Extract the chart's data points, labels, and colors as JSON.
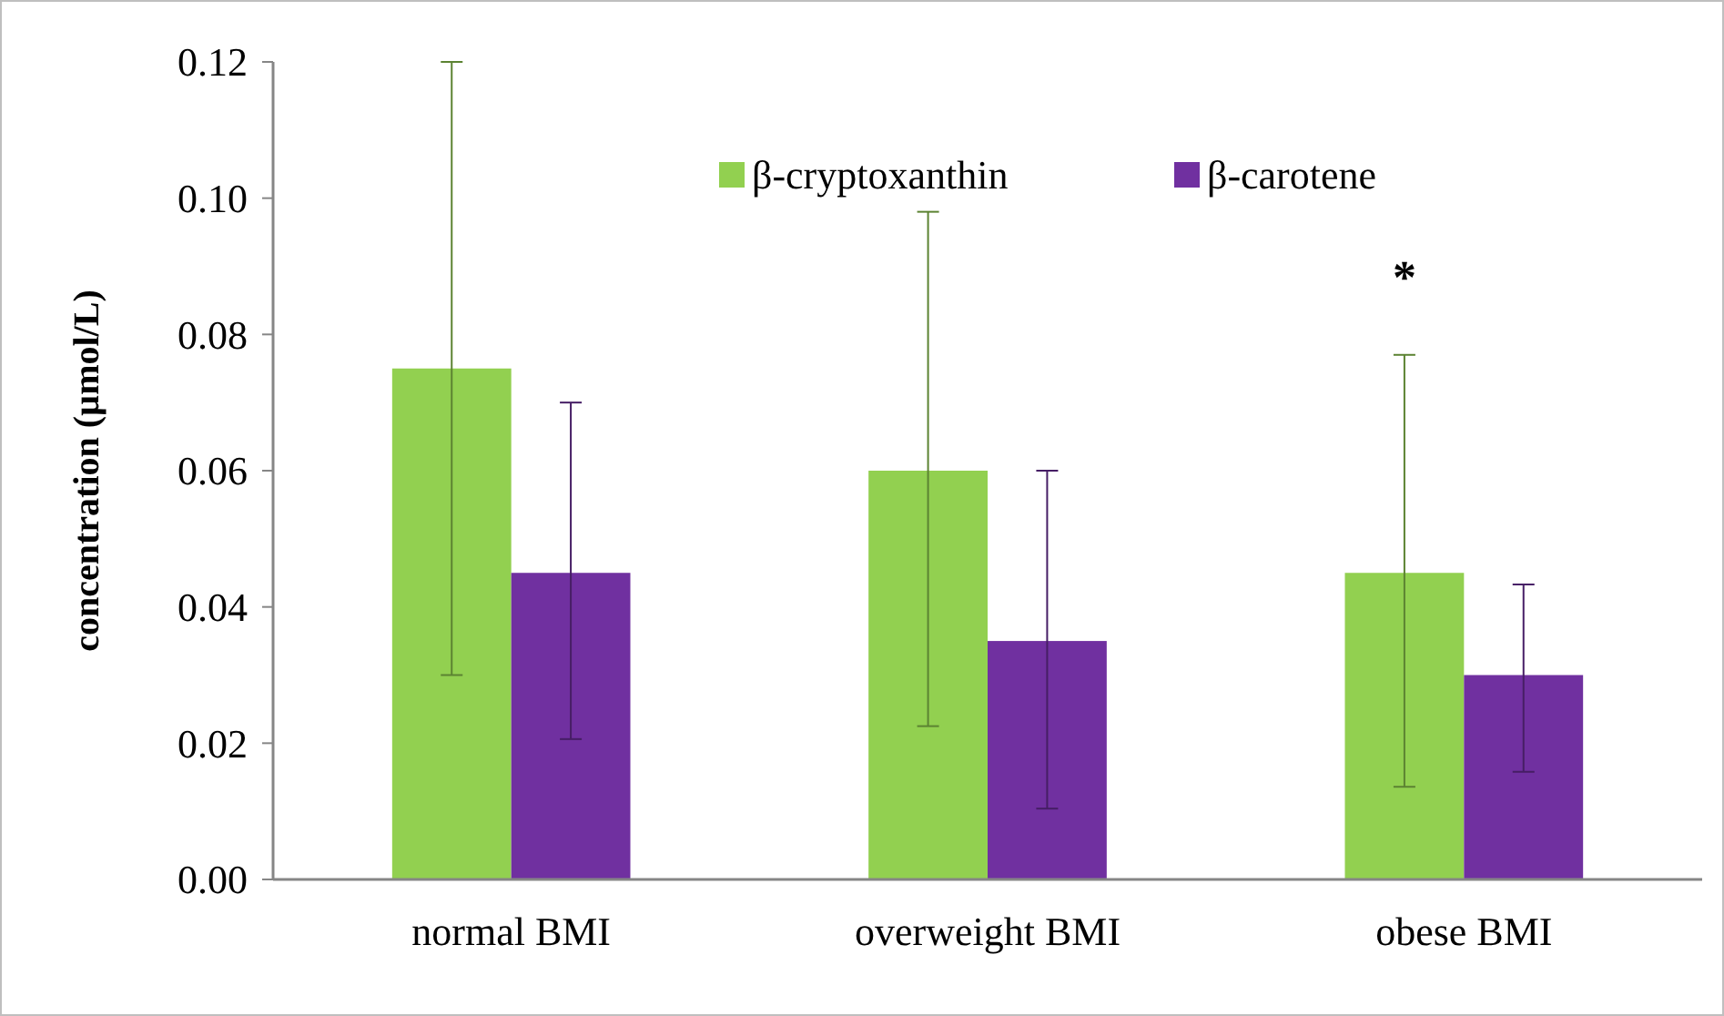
{
  "chart_data": {
    "type": "bar",
    "ylabel": "concentration (µmol/L)",
    "categories": [
      "normal BMI",
      "overweight BMI",
      "obese BMI"
    ],
    "series": [
      {
        "name": "β-cryptoxanthin",
        "color": "#92d050",
        "values": [
          0.075,
          0.06,
          0.045
        ],
        "errors": [
          [
            0.03,
            0.12
          ],
          [
            0.0225,
            0.098
          ],
          [
            0.0136,
            0.077
          ]
        ]
      },
      {
        "name": "β-carotene",
        "color": "#7030a0",
        "values": [
          0.045,
          0.035,
          0.03
        ],
        "errors": [
          [
            0.0206,
            0.07
          ],
          [
            0.0104,
            0.06
          ],
          [
            0.0158,
            0.0433
          ]
        ]
      }
    ],
    "ylim": [
      0,
      0.12
    ],
    "yticks": [
      {
        "value": 0,
        "label": "0.00"
      },
      {
        "value": 0.02,
        "label": "0.02"
      },
      {
        "value": 0.04,
        "label": "0.04"
      },
      {
        "value": 0.06,
        "label": "0.06"
      },
      {
        "value": 0.08,
        "label": "0.08"
      },
      {
        "value": 0.1,
        "label": "0.10"
      },
      {
        "value": 0.12,
        "label": "0.12"
      }
    ],
    "annotations": [
      "*"
    ],
    "legend": "top",
    "grid": false
  }
}
